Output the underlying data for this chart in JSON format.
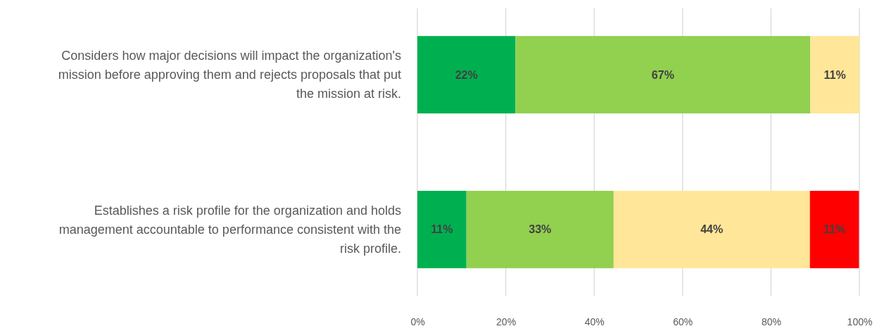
{
  "chart_data": {
    "type": "bar",
    "orientation": "horizontal",
    "stacked": true,
    "categories": [
      "Considers how major decisions will impact the organization's mission before approving them and rejects proposals that put the mission at risk.",
      "Establishes a risk profile for the organization and holds management accountable to performance consistent with the risk profile."
    ],
    "series": [
      {
        "color": "#00b050",
        "values": [
          22.2,
          11.1
        ],
        "value_labels": [
          "22%",
          "11%"
        ]
      },
      {
        "color": "#92d050",
        "values": [
          66.7,
          33.3
        ],
        "value_labels": [
          "67%",
          "33%"
        ]
      },
      {
        "color": "#ffe699",
        "values": [
          11.1,
          44.4
        ],
        "value_labels": [
          "11%",
          "44%"
        ]
      },
      {
        "color": "#ff0000",
        "values": [
          null,
          11.1
        ],
        "value_labels": [
          null,
          "11%"
        ]
      }
    ],
    "xlim": [
      0,
      100
    ],
    "xticks": [
      {
        "value": 0,
        "label": "0%"
      },
      {
        "value": 20,
        "label": "20%"
      },
      {
        "value": 40,
        "label": "40%"
      },
      {
        "value": 60,
        "label": "60%"
      },
      {
        "value": 80,
        "label": "80%"
      },
      {
        "value": 100,
        "label": "100%"
      }
    ],
    "grid": "x"
  }
}
